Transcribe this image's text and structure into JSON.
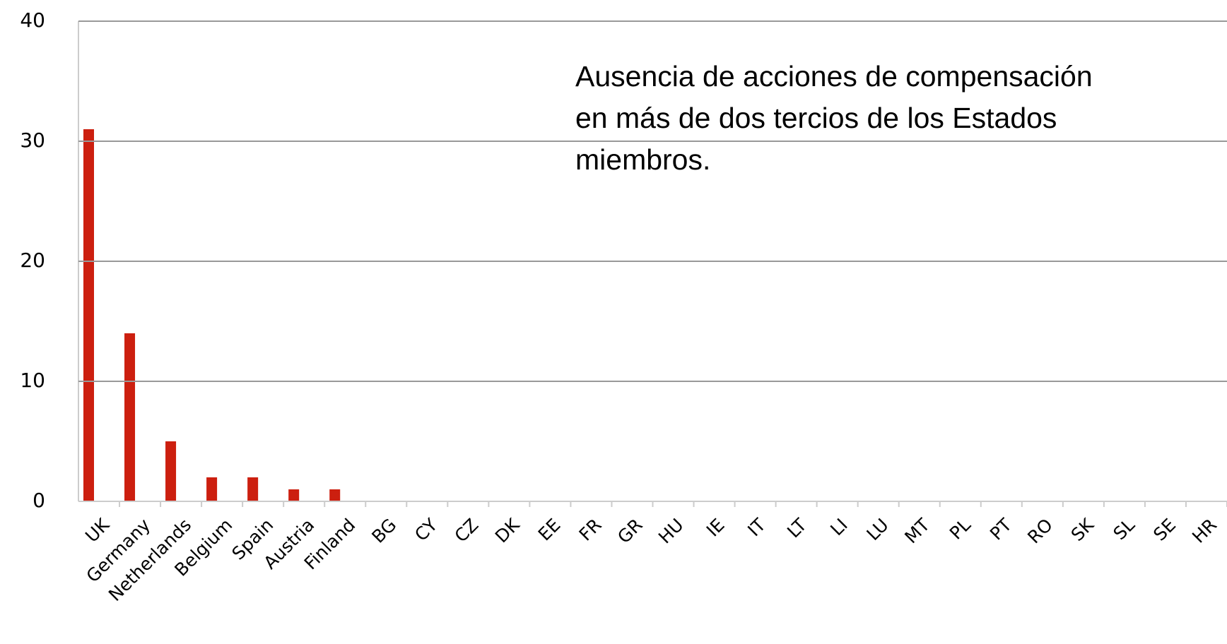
{
  "chart_data": {
    "type": "bar",
    "annotation": [
      "Ausencia de acciones de compensación",
      "en más de dos tercios de los Estados",
      "miembros."
    ],
    "categories": [
      "UK",
      "Germany",
      "Netherlands",
      "Belgium",
      "Spain",
      "Austria",
      "Finland",
      "BG",
      "CY",
      "CZ",
      "DK",
      "EE",
      "FR",
      "GR",
      "HU",
      "IE",
      "IT",
      "LT",
      "LI",
      "LU",
      "MT",
      "PL",
      "PT",
      "RO",
      "SK",
      "SL",
      "SE",
      "HR"
    ],
    "values": [
      31,
      14,
      5,
      2,
      2,
      1,
      1,
      0,
      0,
      0,
      0,
      0,
      0,
      0,
      0,
      0,
      0,
      0,
      0,
      0,
      0,
      0,
      0,
      0,
      0,
      0,
      0,
      0
    ],
    "color": "#cc1f0f",
    "ylim": [
      0,
      40
    ],
    "yticks": [
      0,
      10,
      20,
      30,
      40
    ],
    "grid": true
  }
}
